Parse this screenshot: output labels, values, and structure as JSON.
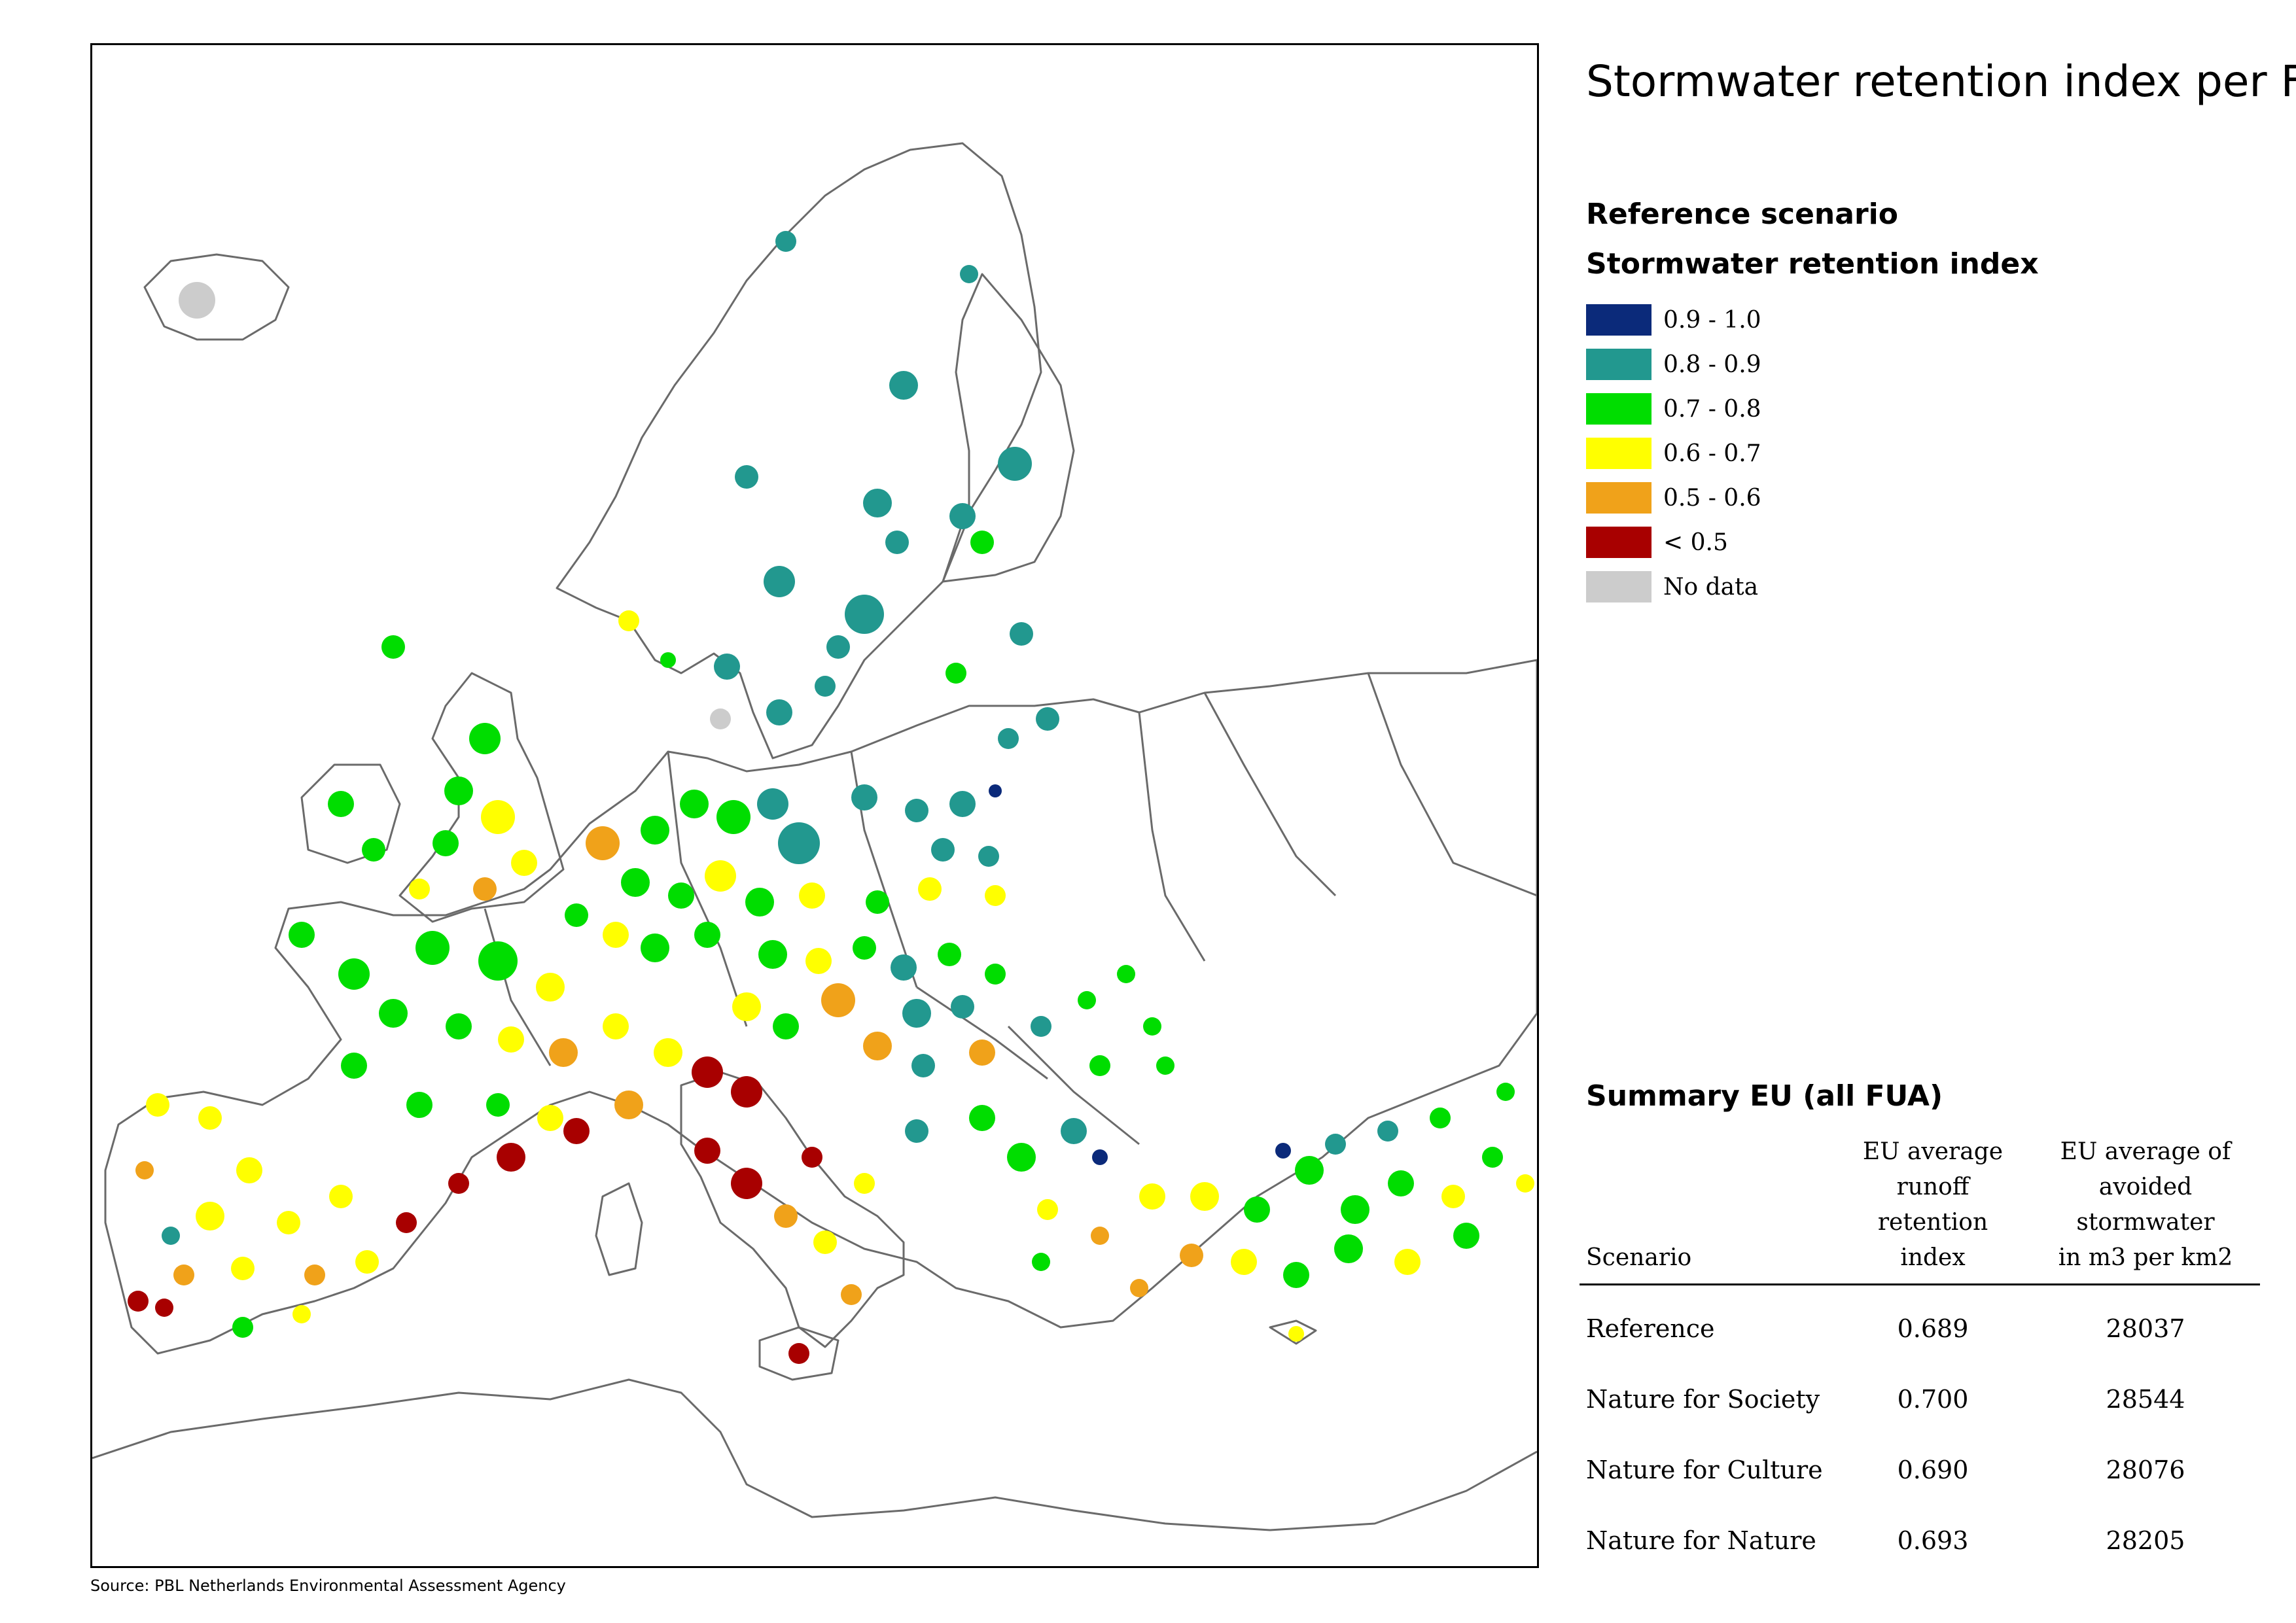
{
  "title": "Stormwater retention index per FUA",
  "scenario_heading": "Reference scenario",
  "legend": {
    "title": "Stormwater retention index",
    "items": [
      {
        "label": "0.9 - 1.0",
        "color": "#0b2a7a"
      },
      {
        "label": "0.8 - 0.9",
        "color": "#22988f"
      },
      {
        "label": "0.7 - 0.8",
        "color": "#00dd00"
      },
      {
        "label": "0.6 - 0.7",
        "color": "#ffff00"
      },
      {
        "label": "0.5 - 0.6",
        "color": "#f0a21a"
      },
      {
        "label": "< 0.5",
        "color": "#a80000"
      },
      {
        "label": "No data",
        "color": "#cccccc"
      }
    ]
  },
  "summary": {
    "title": "Summary EU (all FUA)",
    "headers": {
      "scenario": "Scenario",
      "retention": [
        "EU average",
        "runoff",
        "retention",
        "index"
      ],
      "avoided": [
        "EU average of",
        "avoided stormwater",
        "in m3 per km2"
      ]
    },
    "rows": [
      {
        "scenario": "Reference",
        "retention": "0.689",
        "avoided": "28037"
      },
      {
        "scenario": "Nature for Society",
        "retention": "0.700",
        "avoided": "28544"
      },
      {
        "scenario": "Nature for Culture",
        "retention": "0.690",
        "avoided": "28076"
      },
      {
        "scenario": "Nature for Nature",
        "retention": "0.693",
        "avoided": "28205"
      }
    ]
  },
  "source": "Source: PBL Netherlands Environmental Assessment Agency"
}
